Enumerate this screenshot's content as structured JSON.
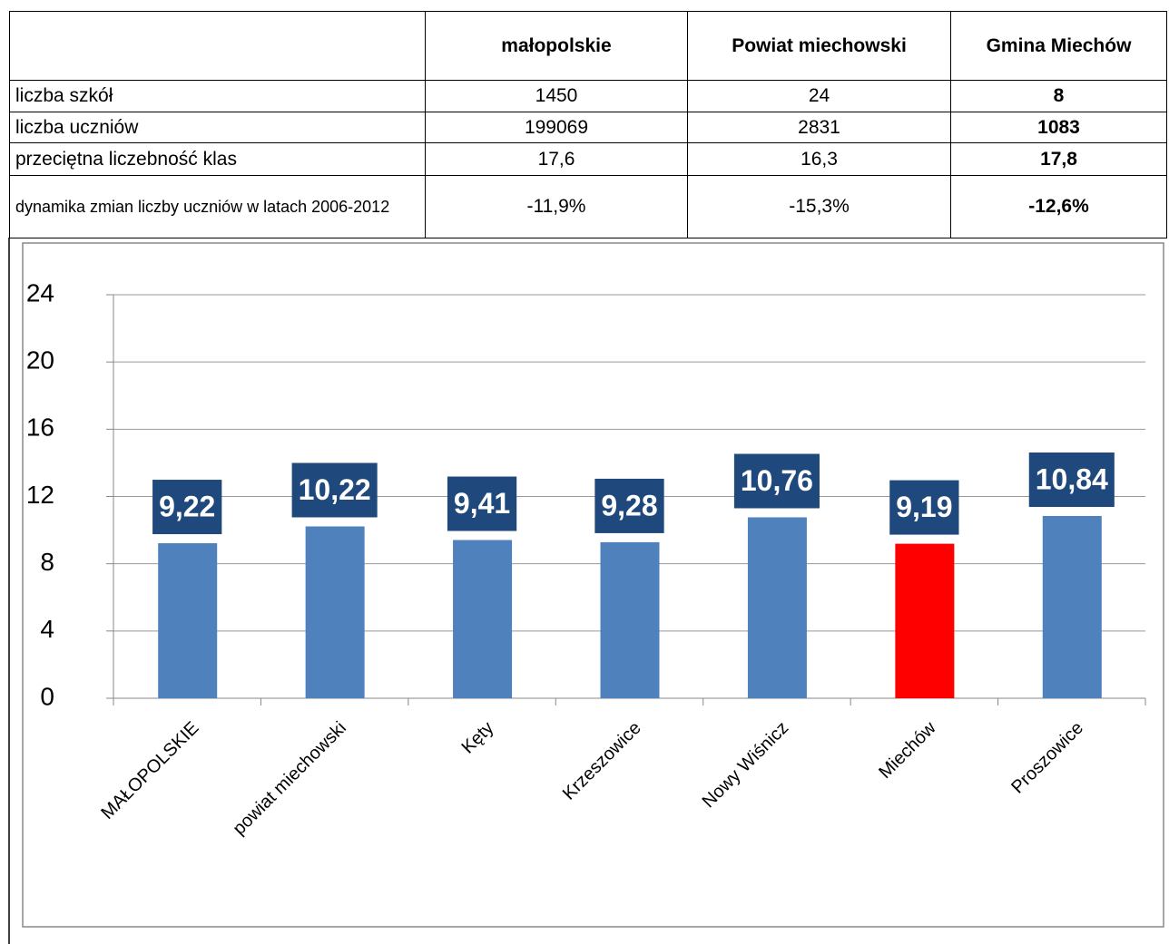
{
  "table": {
    "columns": [
      "małopolskie",
      "Powiat miechowski",
      "Gmina Miechów"
    ],
    "rows": [
      {
        "label": "liczba szkół",
        "values": [
          "1450",
          "24",
          "8"
        ]
      },
      {
        "label": "liczba uczniów",
        "values": [
          "199069",
          "2831",
          "1083"
        ]
      },
      {
        "label": "przeciętna liczebność klas",
        "values": [
          "17,6",
          "16,3",
          "17,8"
        ]
      },
      {
        "label": "dynamika zmian liczby uczniów w latach 2006-2012",
        "values": [
          "-11,9%",
          "-15,3%",
          "-12,6%"
        ]
      }
    ]
  },
  "chart_data": {
    "type": "bar",
    "categories": [
      "MAŁOPOLSKIE",
      "powiat miechowski",
      "Kęty",
      "Krzeszowice",
      "Nowy Wiśnicz",
      "Miechów",
      "Proszowice"
    ],
    "values": [
      9.22,
      10.22,
      9.41,
      9.28,
      10.76,
      9.19,
      10.84
    ],
    "value_labels": [
      "9,22",
      "10,22",
      "9,41",
      "9,28",
      "10,76",
      "9,19",
      "10,84"
    ],
    "colors": [
      "#4f81bd",
      "#4f81bd",
      "#4f81bd",
      "#4f81bd",
      "#4f81bd",
      "#ff0000",
      "#4f81bd"
    ],
    "ylim": [
      0,
      24
    ],
    "yticks": [
      0,
      4,
      8,
      12,
      16,
      20,
      24
    ],
    "grid": true
  }
}
